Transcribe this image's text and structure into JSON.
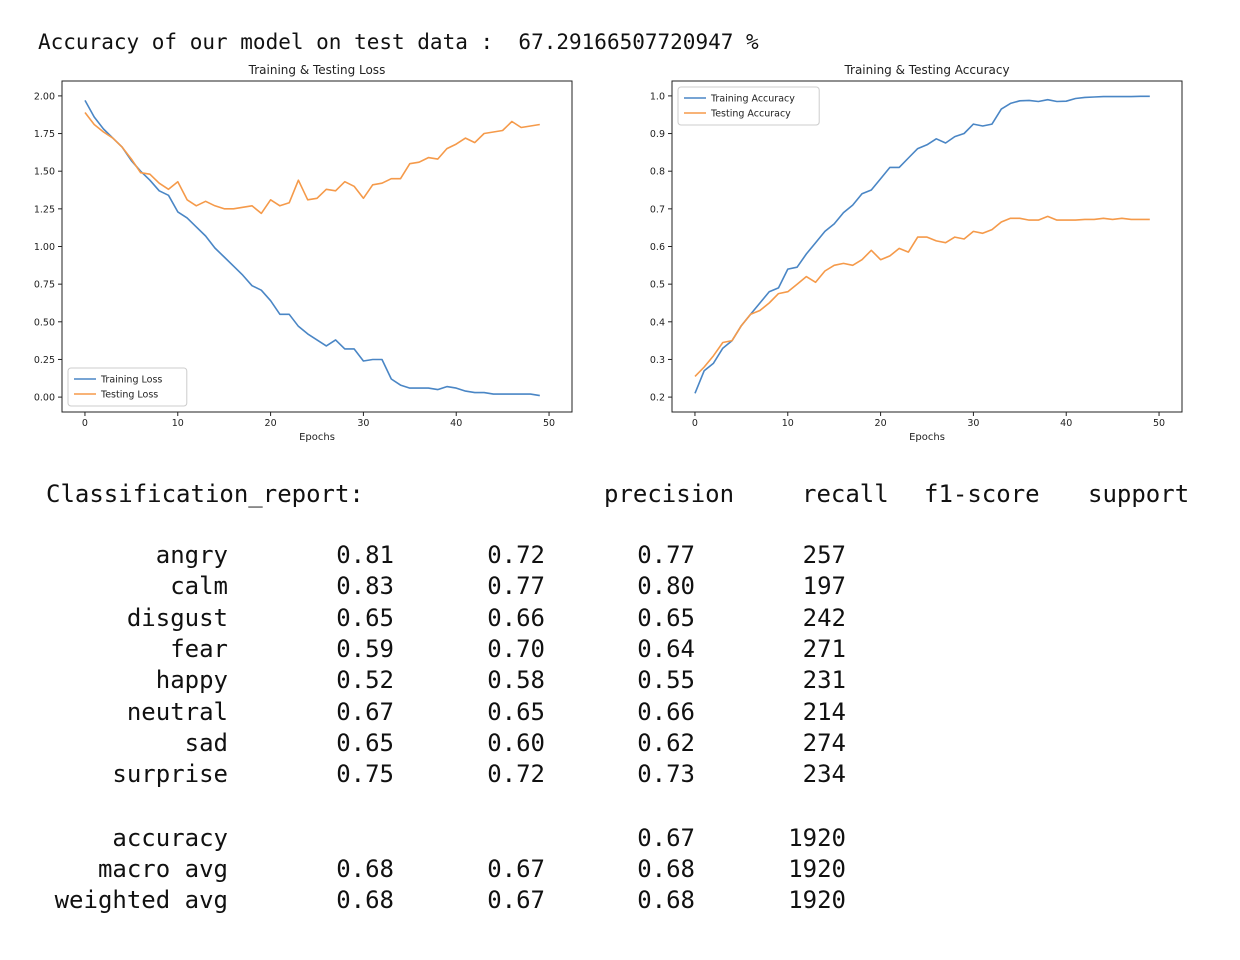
{
  "header_text": "Accuracy of our model on test data :  67.29166507720947 %",
  "colors": {
    "training": "#4a86c5",
    "testing": "#f59a4a",
    "axis": "#222222"
  },
  "chart_data": [
    {
      "type": "line",
      "title": "Training & Testing Loss",
      "xlabel": "Epochs",
      "ylabel": "",
      "xlim": [
        0,
        50
      ],
      "ylim": [
        0.0,
        2.0
      ],
      "xticks": [
        0,
        10,
        20,
        30,
        40,
        50
      ],
      "yticks": [
        "0.00",
        "0.25",
        "0.50",
        "0.75",
        "1.00",
        "1.25",
        "1.50",
        "1.75",
        "2.00"
      ],
      "legend_position": "lower-left",
      "grid": false,
      "x": [
        0,
        1,
        2,
        3,
        4,
        5,
        6,
        7,
        8,
        9,
        10,
        11,
        12,
        13,
        14,
        15,
        16,
        17,
        18,
        19,
        20,
        21,
        22,
        23,
        24,
        25,
        26,
        27,
        28,
        29,
        30,
        31,
        32,
        33,
        34,
        35,
        36,
        37,
        38,
        39,
        40,
        41,
        42,
        43,
        44,
        45,
        46,
        47,
        48,
        49
      ],
      "series": [
        {
          "name": "Training Loss",
          "color": "#4a86c5",
          "values": [
            1.97,
            1.86,
            1.78,
            1.72,
            1.66,
            1.57,
            1.5,
            1.44,
            1.37,
            1.34,
            1.23,
            1.19,
            1.13,
            1.07,
            0.99,
            0.93,
            0.87,
            0.81,
            0.74,
            0.71,
            0.64,
            0.55,
            0.55,
            0.47,
            0.42,
            0.38,
            0.34,
            0.38,
            0.32,
            0.32,
            0.24,
            0.25,
            0.25,
            0.12,
            0.08,
            0.06,
            0.06,
            0.06,
            0.05,
            0.07,
            0.06,
            0.04,
            0.03,
            0.03,
            0.02,
            0.02,
            0.02,
            0.02,
            0.02,
            0.01
          ]
        },
        {
          "name": "Testing Loss",
          "color": "#f59a4a",
          "values": [
            1.89,
            1.81,
            1.76,
            1.72,
            1.66,
            1.58,
            1.49,
            1.48,
            1.42,
            1.38,
            1.43,
            1.31,
            1.27,
            1.3,
            1.27,
            1.25,
            1.25,
            1.26,
            1.27,
            1.22,
            1.31,
            1.27,
            1.29,
            1.44,
            1.31,
            1.32,
            1.38,
            1.37,
            1.43,
            1.4,
            1.32,
            1.41,
            1.42,
            1.45,
            1.45,
            1.55,
            1.56,
            1.59,
            1.58,
            1.65,
            1.68,
            1.72,
            1.69,
            1.75,
            1.76,
            1.77,
            1.83,
            1.79,
            1.8,
            1.81
          ]
        }
      ]
    },
    {
      "type": "line",
      "title": "Training & Testing Accuracy",
      "xlabel": "Epochs",
      "ylabel": "",
      "xlim": [
        0,
        50
      ],
      "ylim": [
        0.2,
        1.0
      ],
      "xticks": [
        0,
        10,
        20,
        30,
        40,
        50
      ],
      "yticks": [
        "0.2",
        "0.3",
        "0.4",
        "0.5",
        "0.6",
        "0.7",
        "0.8",
        "0.9",
        "1.0"
      ],
      "legend_position": "upper-left",
      "grid": false,
      "x": [
        0,
        1,
        2,
        3,
        4,
        5,
        6,
        7,
        8,
        9,
        10,
        11,
        12,
        13,
        14,
        15,
        16,
        17,
        18,
        19,
        20,
        21,
        22,
        23,
        24,
        25,
        26,
        27,
        28,
        29,
        30,
        31,
        32,
        33,
        34,
        35,
        36,
        37,
        38,
        39,
        40,
        41,
        42,
        43,
        44,
        45,
        46,
        47,
        48,
        49
      ],
      "series": [
        {
          "name": "Training Accuracy",
          "color": "#4a86c5",
          "values": [
            0.21,
            0.27,
            0.29,
            0.33,
            0.35,
            0.39,
            0.42,
            0.45,
            0.48,
            0.49,
            0.54,
            0.545,
            0.58,
            0.61,
            0.64,
            0.66,
            0.69,
            0.71,
            0.74,
            0.75,
            0.78,
            0.81,
            0.81,
            0.835,
            0.86,
            0.87,
            0.886,
            0.875,
            0.892,
            0.9,
            0.925,
            0.92,
            0.925,
            0.965,
            0.98,
            0.987,
            0.988,
            0.985,
            0.99,
            0.985,
            0.986,
            0.993,
            0.996,
            0.997,
            0.998,
            0.998,
            0.998,
            0.998,
            0.999,
            0.999
          ]
        },
        {
          "name": "Testing Accuracy",
          "color": "#f59a4a",
          "values": [
            0.255,
            0.28,
            0.31,
            0.345,
            0.35,
            0.39,
            0.42,
            0.43,
            0.45,
            0.475,
            0.48,
            0.5,
            0.52,
            0.505,
            0.535,
            0.55,
            0.555,
            0.55,
            0.565,
            0.59,
            0.565,
            0.575,
            0.595,
            0.585,
            0.625,
            0.625,
            0.615,
            0.61,
            0.625,
            0.62,
            0.64,
            0.635,
            0.645,
            0.665,
            0.675,
            0.675,
            0.67,
            0.67,
            0.68,
            0.67,
            0.67,
            0.67,
            0.672,
            0.672,
            0.675,
            0.672,
            0.675,
            0.672,
            0.672,
            0.672
          ]
        }
      ]
    }
  ],
  "report": {
    "title": "Classification_report:",
    "headers": [
      "precision",
      "recall",
      "f1-score",
      "support"
    ],
    "rows": [
      {
        "label": "angry",
        "values": [
          "0.81",
          "0.72",
          "0.77",
          "257"
        ]
      },
      {
        "label": "calm",
        "values": [
          "0.83",
          "0.77",
          "0.80",
          "197"
        ]
      },
      {
        "label": "disgust",
        "values": [
          "0.65",
          "0.66",
          "0.65",
          "242"
        ]
      },
      {
        "label": "fear",
        "values": [
          "0.59",
          "0.70",
          "0.64",
          "271"
        ]
      },
      {
        "label": "happy",
        "values": [
          "0.52",
          "0.58",
          "0.55",
          "231"
        ]
      },
      {
        "label": "neutral",
        "values": [
          "0.67",
          "0.65",
          "0.66",
          "214"
        ]
      },
      {
        "label": "sad",
        "values": [
          "0.65",
          "0.60",
          "0.62",
          "274"
        ]
      },
      {
        "label": "surprise",
        "values": [
          "0.75",
          "0.72",
          "0.73",
          "234"
        ]
      }
    ],
    "summary": [
      {
        "label": "accuracy",
        "values": [
          "",
          "",
          "0.67",
          "1920"
        ]
      },
      {
        "label": "macro avg",
        "values": [
          "0.68",
          "0.67",
          "0.68",
          "1920"
        ]
      },
      {
        "label": "weighted avg",
        "values": [
          "0.68",
          "0.67",
          "0.68",
          "1920"
        ]
      }
    ]
  }
}
